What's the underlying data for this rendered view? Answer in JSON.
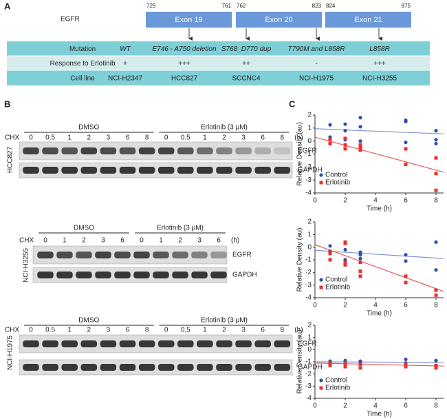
{
  "panel_labels": [
    "A",
    "B",
    "C"
  ],
  "exon_map": {
    "gene": "EGFR",
    "exons": [
      {
        "label": "Exon 19",
        "start": 729,
        "end": 761
      },
      {
        "label": "Exon 20",
        "start": 762,
        "end": 823
      },
      {
        "label": "Exon 21",
        "start": 824,
        "end": 875
      }
    ]
  },
  "table": {
    "rows": [
      [
        "Mutation",
        "WT",
        "E746 - A750 deletion",
        "S768_D770 dup",
        "T790M and L858R",
        "L858R"
      ],
      [
        "Response to Erlotinib",
        "+",
        "+++",
        "++",
        "-",
        "+++"
      ],
      [
        "Cell line",
        "NCI-H2347",
        "HCC827",
        "SCCNC4",
        "NCI-H1975",
        "NCI-H3255"
      ]
    ]
  },
  "blots": [
    {
      "cell_line": "HCC827",
      "row_label": "CHX",
      "unit": "(h)",
      "groups": [
        "DMSO",
        "Erlotinib (3 μM)"
      ],
      "lanes": [
        "0",
        "0.5",
        "1",
        "2",
        "3",
        "6",
        "8",
        "0",
        "0.5",
        "1",
        "2",
        "3",
        "6",
        "8"
      ],
      "proteins": [
        "EGFR",
        "GAPDH"
      ]
    },
    {
      "cell_line": "NCI-H3255",
      "row_label": "CHX",
      "unit": "(h)",
      "groups": [
        "DMSO",
        "Erlotinib (3 μM)"
      ],
      "lanes": [
        "0",
        "1",
        "2",
        "3",
        "6",
        "0",
        "1",
        "2",
        "3",
        "6"
      ],
      "proteins": [
        "EGFR",
        "GAPDH"
      ]
    },
    {
      "cell_line": "NCI-H1975",
      "row_label": "CHX",
      "unit": "(h)",
      "groups": [
        "DMSO",
        "Erlotinib (3 μM)"
      ],
      "lanes": [
        "0",
        "0.5",
        "1",
        "2",
        "3",
        "6",
        "8",
        "0",
        "0.5",
        "1",
        "2",
        "3",
        "6",
        "8"
      ],
      "proteins": [
        "EGFR",
        "GAPDH"
      ]
    }
  ],
  "chart_data": [
    {
      "type": "scatter",
      "xlabel": "Time (h)",
      "ylabel": "Relative Density (au)",
      "xlim": [
        0,
        8.5
      ],
      "ylim": [
        -4,
        2
      ],
      "xticks": [
        0,
        2,
        4,
        6,
        8
      ],
      "yticks": [
        -4,
        -3,
        -2,
        -1,
        0,
        1,
        2
      ],
      "legend": "lower left",
      "series": [
        {
          "name": "Control",
          "color": "#2f4fa8",
          "line_color": "#7d92d2",
          "x": [
            1,
            1,
            2,
            2,
            2,
            3,
            3,
            3,
            6,
            6,
            6,
            8,
            8,
            8
          ],
          "values": [
            1.25,
            0.3,
            1.3,
            0.8,
            0.1,
            1.8,
            1.1,
            0.0,
            1.6,
            1.5,
            -0.1,
            0.8,
            0.1,
            -0.2
          ],
          "fit": [
            0.95,
            0.55
          ]
        },
        {
          "name": "Erlotinib",
          "color": "#e8312f",
          "line_color": "#ec5a55",
          "x": [
            1,
            1,
            2,
            2,
            2,
            3,
            3,
            3,
            6,
            6,
            8,
            8,
            8
          ],
          "values": [
            0.1,
            -0.2,
            0.2,
            -0.3,
            -0.6,
            -0.3,
            -0.5,
            -0.7,
            -0.6,
            -1.8,
            -1.3,
            -2.5,
            -3.8
          ],
          "fit": [
            0.3,
            -2.4
          ]
        }
      ]
    },
    {
      "type": "scatter",
      "xlabel": "Time (h)",
      "ylabel": "Relative Density (au)",
      "xlim": [
        0,
        8.5
      ],
      "ylim": [
        -4,
        2
      ],
      "xticks": [
        0,
        2,
        4,
        6,
        8
      ],
      "yticks": [
        -4,
        -3,
        -2,
        -1,
        0,
        1,
        2
      ],
      "legend": "lower left",
      "series": [
        {
          "name": "Control",
          "color": "#2f4fa8",
          "line_color": "#7d92d2",
          "x": [
            1,
            1,
            2,
            2,
            2,
            3,
            3,
            3,
            6,
            6,
            8,
            8
          ],
          "values": [
            0.1,
            -0.3,
            0.3,
            -0.2,
            -1.0,
            -0.6,
            -0.9,
            -0.4,
            -0.6,
            -1.1,
            0.4,
            -1.8
          ],
          "fit": [
            -0.25,
            -0.9
          ]
        },
        {
          "name": "Erlotinib",
          "color": "#e8312f",
          "line_color": "#ec5a55",
          "x": [
            1,
            1,
            2,
            2,
            2,
            2,
            3,
            3,
            3,
            6,
            6,
            8,
            8
          ],
          "values": [
            -0.5,
            -1.0,
            0.4,
            0.3,
            -1.2,
            -1.4,
            -1.2,
            -1.9,
            -2.3,
            -2.3,
            -2.8,
            -3.4,
            -3.8
          ],
          "fit": [
            0.2,
            -3.5
          ]
        }
      ]
    },
    {
      "type": "scatter",
      "xlabel": "Time (h)",
      "ylabel": "Relative Density (au)",
      "xlim": [
        0,
        8.5
      ],
      "ylim": [
        -4,
        2
      ],
      "xticks": [
        0,
        2,
        4,
        6,
        8
      ],
      "yticks": [
        -4,
        -3,
        -2,
        -1,
        0,
        1,
        2
      ],
      "legend": "lower left",
      "series": [
        {
          "name": "Control",
          "color": "#2f4fa8",
          "line_color": "#7d92d2",
          "x": [
            1,
            1,
            2,
            2,
            3,
            3,
            6,
            6,
            8,
            8
          ],
          "values": [
            -0.95,
            -1.2,
            -0.9,
            -1.1,
            -0.95,
            -1.2,
            -0.8,
            -1.1,
            -0.9,
            -1.3
          ],
          "fit": [
            -1.0,
            -1.05
          ]
        },
        {
          "name": "Erlotinib",
          "color": "#e8312f",
          "line_color": "#ec5a55",
          "x": [
            1,
            1,
            2,
            2,
            3,
            3,
            6,
            6,
            8,
            8
          ],
          "values": [
            -1.1,
            -1.3,
            -1.1,
            -1.4,
            -1.2,
            -1.5,
            -1.2,
            -1.4,
            -1.3,
            -1.5
          ],
          "fit": [
            -1.1,
            -1.35
          ]
        }
      ]
    }
  ]
}
